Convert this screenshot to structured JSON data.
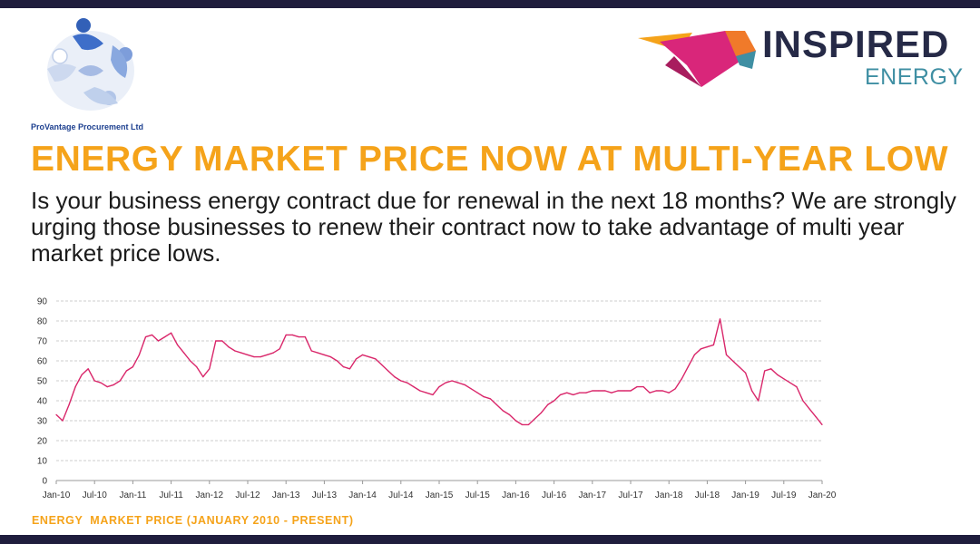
{
  "brand_left": {
    "name": "ProVantage Procurement Ltd",
    "logo_icon": "people-circle-logo",
    "colors": {
      "primary": "#1c3f8f",
      "light": "#9fb8de"
    }
  },
  "brand_right": {
    "word1": "INSPIRED",
    "word2": "ENERGY",
    "logo_icon": "inspired-energy-mark",
    "colors": {
      "text": "#262a47",
      "accent": "#3f8fa3",
      "magenta": "#d9267a",
      "orange": "#f5a31a"
    }
  },
  "headline": "ENERGY MARKET PRICE NOW AT MULTI-YEAR LOW",
  "subtext": "Is your business energy contract due for renewal in the next 18 months? We are strongly urging those businesses to renew their contract now to take advantage of multi year market price lows.",
  "caption": "ENERGY  MARKET PRICE (JANUARY 2010 - PRESENT)",
  "colors": {
    "headline": "#f5a31a",
    "line": "#d9266a",
    "grid": "#cccccc",
    "frame": "#1f1d3d"
  },
  "chart_data": {
    "type": "line",
    "title": "",
    "xlabel": "",
    "ylabel": "",
    "ylim": [
      0,
      90
    ],
    "yticks": [
      0,
      10,
      20,
      30,
      40,
      50,
      60,
      70,
      80,
      90
    ],
    "x_tick_labels": [
      "Jan-10",
      "Jul-10",
      "Jan-11",
      "Jul-11",
      "Jan-12",
      "Jul-12",
      "Jan-13",
      "Jul-13",
      "Jan-14",
      "Jul-14",
      "Jan-15",
      "Jul-15",
      "Jan-16",
      "Jul-16",
      "Jan-17",
      "Jul-17",
      "Jan-18",
      "Jul-18",
      "Jan-19",
      "Jul-19",
      "Jan-20"
    ],
    "grid": true,
    "legend": "none",
    "series": [
      {
        "x": [
          "Jan-10",
          "Feb-10",
          "Mar-10",
          "Apr-10",
          "May-10",
          "Jun-10",
          "Jul-10",
          "Aug-10",
          "Sep-10",
          "Oct-10",
          "Nov-10",
          "Dec-10",
          "Jan-11",
          "Feb-11",
          "Mar-11",
          "Apr-11",
          "May-11",
          "Jun-11",
          "Jul-11",
          "Aug-11",
          "Sep-11",
          "Oct-11",
          "Nov-11",
          "Dec-11",
          "Jan-12",
          "Feb-12",
          "Mar-12",
          "Apr-12",
          "May-12",
          "Jun-12",
          "Jul-12",
          "Aug-12",
          "Sep-12",
          "Oct-12",
          "Nov-12",
          "Dec-12",
          "Jan-13",
          "Feb-13",
          "Mar-13",
          "Apr-13",
          "May-13",
          "Jun-13",
          "Jul-13",
          "Aug-13",
          "Sep-13",
          "Oct-13",
          "Nov-13",
          "Dec-13",
          "Jan-14",
          "Feb-14",
          "Mar-14",
          "Apr-14",
          "May-14",
          "Jun-14",
          "Jul-14",
          "Aug-14",
          "Sep-14",
          "Oct-14",
          "Nov-14",
          "Dec-14",
          "Jan-15",
          "Feb-15",
          "Mar-15",
          "Apr-15",
          "May-15",
          "Jun-15",
          "Jul-15",
          "Aug-15",
          "Sep-15",
          "Oct-15",
          "Nov-15",
          "Dec-15",
          "Jan-16",
          "Feb-16",
          "Mar-16",
          "Apr-16",
          "May-16",
          "Jun-16",
          "Jul-16",
          "Aug-16",
          "Sep-16",
          "Oct-16",
          "Nov-16",
          "Dec-16",
          "Jan-17",
          "Feb-17",
          "Mar-17",
          "Apr-17",
          "May-17",
          "Jun-17",
          "Jul-17",
          "Aug-17",
          "Sep-17",
          "Oct-17",
          "Nov-17",
          "Dec-17",
          "Jan-18",
          "Feb-18",
          "Mar-18",
          "Apr-18",
          "May-18",
          "Jun-18",
          "Jul-18",
          "Aug-18",
          "Sep-18",
          "Oct-18",
          "Nov-18",
          "Dec-18",
          "Jan-19",
          "Feb-19",
          "Mar-19",
          "Apr-19",
          "May-19",
          "Jun-19",
          "Jul-19",
          "Aug-19",
          "Sep-19",
          "Oct-19",
          "Nov-19",
          "Dec-19",
          "Jan-20"
        ],
        "values": [
          33,
          30,
          38,
          47,
          53,
          56,
          50,
          49,
          47,
          48,
          50,
          55,
          57,
          63,
          72,
          73,
          70,
          72,
          74,
          68,
          64,
          60,
          57,
          52,
          56,
          70,
          70,
          67,
          65,
          64,
          63,
          62,
          62,
          63,
          64,
          66,
          73,
          73,
          72,
          72,
          65,
          64,
          63,
          62,
          60,
          57,
          56,
          61,
          63,
          62,
          61,
          58,
          55,
          52,
          50,
          49,
          47,
          45,
          44,
          43,
          47,
          49,
          50,
          49,
          48,
          46,
          44,
          42,
          41,
          38,
          35,
          33,
          30,
          28,
          28,
          31,
          34,
          38,
          40,
          43,
          44,
          43,
          44,
          44,
          45,
          45,
          45,
          44,
          45,
          45,
          45,
          47,
          47,
          44,
          45,
          45,
          44,
          46,
          51,
          57,
          63,
          66,
          67,
          68,
          81,
          63,
          60,
          57,
          54,
          45,
          40,
          55,
          56,
          53,
          51,
          49,
          47,
          40,
          36,
          32,
          28
        ]
      }
    ]
  }
}
